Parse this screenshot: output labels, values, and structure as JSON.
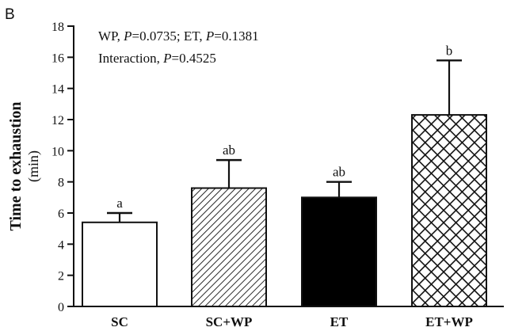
{
  "panel_label": "B",
  "chart_data": {
    "type": "bar",
    "title": "",
    "xlabel": "",
    "ylabel": "Time to exhaustion",
    "ylabel_unit": "(min)",
    "ylim": [
      0,
      18
    ],
    "yticks": [
      0,
      2,
      4,
      6,
      8,
      10,
      12,
      14,
      16,
      18
    ],
    "categories": [
      "SC",
      "SC+WP",
      "ET",
      "ET+WP"
    ],
    "values": [
      5.4,
      7.6,
      7.0,
      12.3
    ],
    "errors": [
      0.6,
      1.8,
      1.0,
      3.5
    ],
    "significance_letters": [
      "a",
      "ab",
      "ab",
      "b"
    ],
    "patterns": [
      "white",
      "diagonal-hatch",
      "solid-black",
      "crosshatch"
    ],
    "annotations": {
      "line1": {
        "wp_prefix": "WP, ",
        "p_symbol": "P",
        "wp_value": "=0.0735; ET, ",
        "p_symbol_2": "P",
        "et_value": "=0.1381"
      },
      "line2": {
        "prefix": "Interaction, ",
        "p_symbol": "P",
        "value": "=0.4525"
      }
    },
    "colors": {
      "axis": "#111111",
      "bar_edge": "#111111",
      "solid_fill": "#000000",
      "background": "#ffffff"
    }
  }
}
